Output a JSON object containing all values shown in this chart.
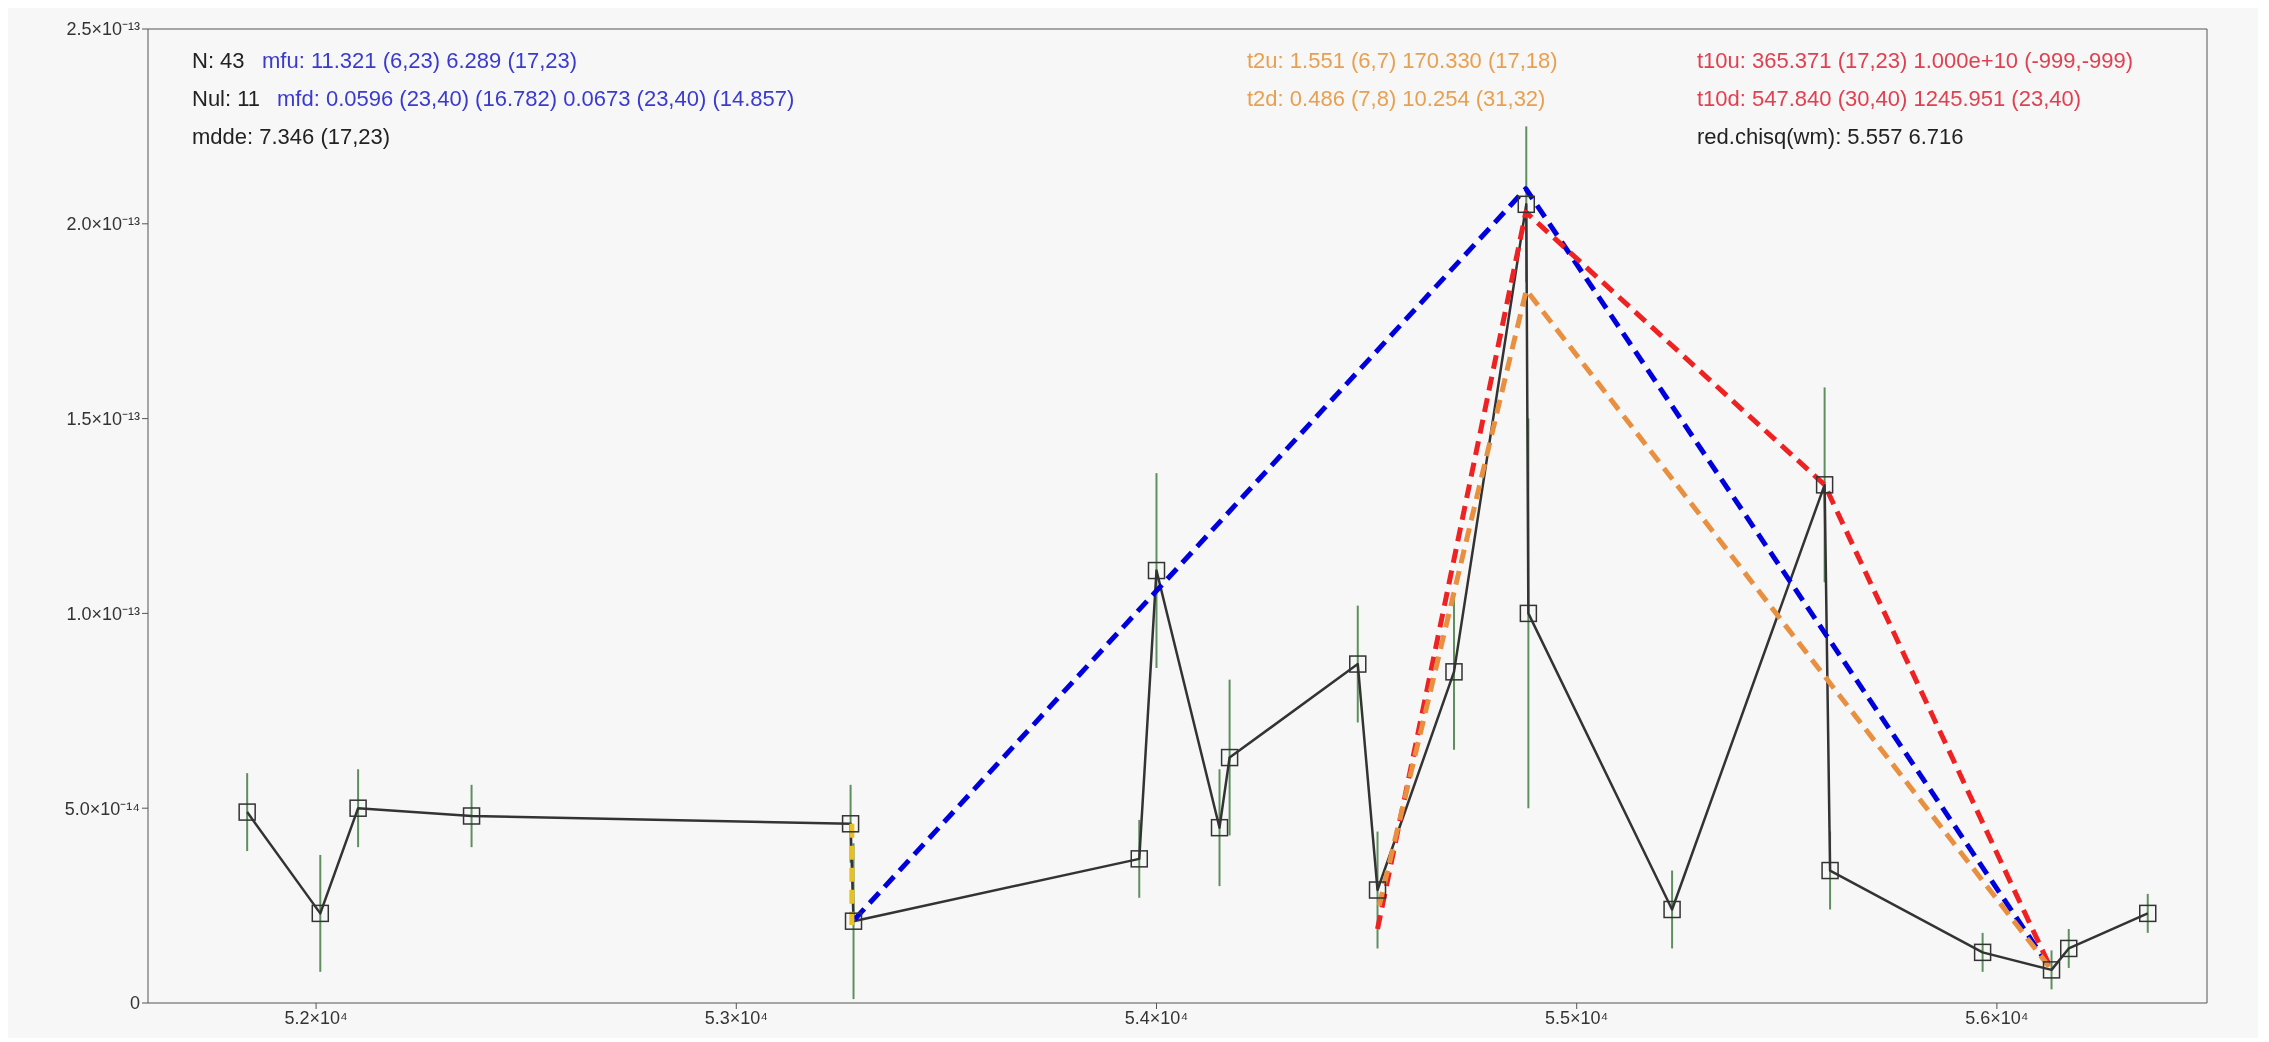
{
  "chart_data": {
    "type": "line",
    "xlim": [
      51600,
      56500
    ],
    "ylim": [
      0,
      2.5e-13
    ],
    "xticks": [
      {
        "value": 52000,
        "label": "5.2×10⁴"
      },
      {
        "value": 53000,
        "label": "5.3×10⁴"
      },
      {
        "value": 54000,
        "label": "5.4×10⁴"
      },
      {
        "value": 55000,
        "label": "5.5×10⁴"
      },
      {
        "value": 56000,
        "label": "5.6×10⁴"
      }
    ],
    "yticks": [
      0,
      {
        "value": 5e-14,
        "label": "5.0×10⁻¹⁴"
      },
      {
        "value": 1e-13,
        "label": "1.0×10⁻¹³"
      },
      {
        "value": 1.5e-13,
        "label": "1.5×10⁻¹³"
      },
      {
        "value": 2e-13,
        "label": "2.0×10⁻¹³"
      },
      {
        "value": 2.5e-13,
        "label": "2.5×10⁻¹³"
      }
    ],
    "grid": false,
    "legend": false,
    "marker": "square",
    "series": [
      {
        "color": "#333333",
        "x": [
          51836,
          52010,
          52100,
          52370,
          53272,
          53279,
          53959,
          54000,
          54150,
          54174,
          54479,
          54526,
          54708,
          54880,
          54885,
          55227,
          55590,
          55603,
          55966,
          56130,
          56171,
          56359
        ],
        "values": [
          4.9e-14,
          2.3e-14,
          5e-14,
          4.8e-14,
          4.6e-14,
          2.1e-14,
          3.7e-14,
          1.11e-13,
          4.5e-14,
          6.3e-14,
          8.7e-14,
          2.9e-14,
          8.5e-14,
          2.05e-13,
          1e-13,
          2.4e-14,
          1.33e-13,
          3.4e-14,
          1.3e-14,
          8.5e-15,
          1.4e-14,
          2.3e-14
        ],
        "errors": [
          1e-14,
          1.5e-14,
          1e-14,
          8e-15,
          1e-14,
          2e-14,
          1e-14,
          2.5e-14,
          1.5e-14,
          2e-14,
          1.5e-14,
          1.5e-14,
          2e-14,
          2e-14,
          5e-14,
          1e-14,
          2.5e-14,
          1e-14,
          5e-15,
          5e-15,
          5e-15,
          5e-15
        ]
      },
      {
        "color": "#0000dd",
        "line_style": "dashed",
        "marker": "none",
        "x": [
          53282,
          54879,
          56130
        ],
        "values": [
          2.15e-14,
          2.09e-13,
          8.5e-15
        ]
      },
      {
        "color": "#ee2222",
        "line_style": "dashed",
        "marker": "none",
        "x": [
          54526,
          54879,
          55590,
          56130
        ],
        "values": [
          1.9e-14,
          2.03e-13,
          1.33e-13,
          8.5e-15
        ]
      },
      {
        "color": "#e89040",
        "line_style": "dashed",
        "marker": "none",
        "x": [
          54530,
          54880,
          56130
        ],
        "values": [
          2.5e-14,
          1.83e-13,
          8.5e-15
        ]
      },
      {
        "color": "#e8c020",
        "line_style": "dashed",
        "marker": "none",
        "x": [
          53275,
          53275
        ],
        "values": [
          4.6e-14,
          2e-14
        ]
      }
    ],
    "annotations": [
      "N: 43",
      "mfu: 11.321 (6,23) 6.289 (17,23)",
      "Nul: 11",
      "mfd: 0.0596 (23,40) (16.782) 0.0673 (23,40) (14.857)",
      "mdde: 7.346 (17,23)",
      "t2u: 1.551 (6,7) 170.330 (17,18)",
      "t2d: 0.486 (7,8) 10.254 (31,32)",
      "t10u: 365.371 (17,23) 1.000e+10 (-999,-999)",
      "t10d: 547.840 (30,40) 1245.951 (23,40)",
      "red.chisq(wm): 5.557 6.716"
    ]
  }
}
